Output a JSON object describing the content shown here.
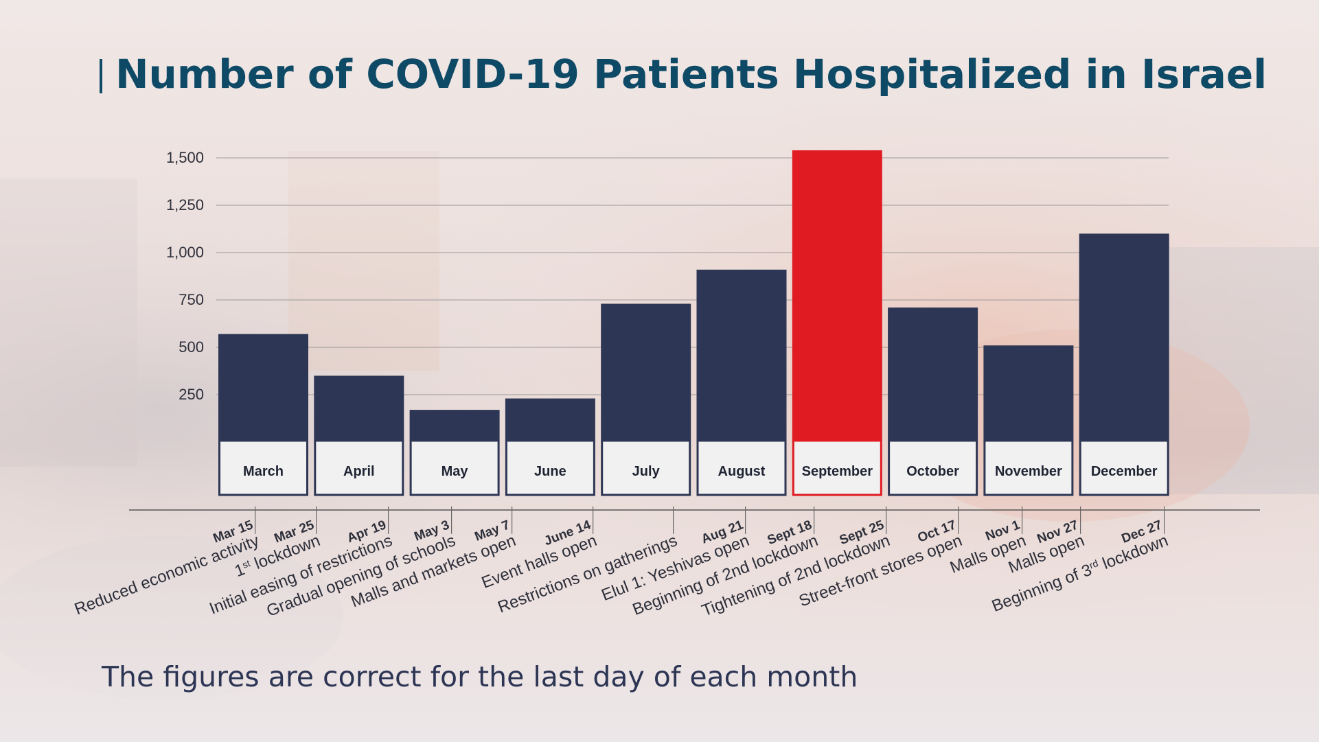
{
  "colors": {
    "title": "#0e4a66",
    "bar": "#2d3654",
    "highlight": "#e01b22",
    "label_box": "#f1f1f1",
    "grid": "#8a8a8a",
    "annotation": "#2d2f3a"
  },
  "chart_data": {
    "type": "bar",
    "title": "Number of COVID-19 Patients Hospitalized in Israel",
    "note": "The figures are correct for the last day of each month",
    "ylim": [
      0,
      1500
    ],
    "yticks": [
      250,
      500,
      750,
      1000,
      1250,
      1500
    ],
    "ytick_labels": [
      "250",
      "500",
      "750",
      "1,000",
      "1,250",
      "1,500"
    ],
    "grid": true,
    "categories": [
      "March",
      "April",
      "May",
      "June",
      "July",
      "August",
      "September",
      "October",
      "November",
      "December"
    ],
    "values": [
      570,
      350,
      170,
      230,
      730,
      910,
      1540,
      710,
      510,
      1100
    ],
    "highlight_index": 6,
    "annotations": [
      {
        "date": "Mar 15",
        "text": "Reduced economic activity",
        "sup": ""
      },
      {
        "date": "Mar 25",
        "text": "1",
        "sup": "st",
        "rest": " lockdown"
      },
      {
        "date": "Apr 19",
        "text": "Initial easing of restrictions",
        "sup": ""
      },
      {
        "date": "May 3",
        "text": "Gradual opening of schools",
        "sup": ""
      },
      {
        "date": "May 7",
        "text": "Malls and markets open",
        "sup": ""
      },
      {
        "date": "June 14",
        "text": "Event halls open",
        "sup": ""
      },
      {
        "date": "",
        "text": "Restrictions on gatherings",
        "sup": ""
      },
      {
        "date": "Aug 21",
        "text": "Elul 1: Yeshivas open",
        "sup": ""
      },
      {
        "date": "Sept 18",
        "text": "Beginning of 2nd lockdown",
        "sup": ""
      },
      {
        "date": "Sept 25",
        "text": "Tightening of 2nd lockdown",
        "sup": ""
      },
      {
        "date": "Oct 17",
        "text": "Street-front stores open",
        "sup": ""
      },
      {
        "date": "Nov 1",
        "text": "Malls open",
        "sup": ""
      },
      {
        "date": "Nov 27",
        "text": "Malls open",
        "sup": ""
      },
      {
        "date": "Dec 27",
        "text": "Beginning of 3",
        "sup": "rd",
        "rest": " lockdown"
      }
    ]
  }
}
